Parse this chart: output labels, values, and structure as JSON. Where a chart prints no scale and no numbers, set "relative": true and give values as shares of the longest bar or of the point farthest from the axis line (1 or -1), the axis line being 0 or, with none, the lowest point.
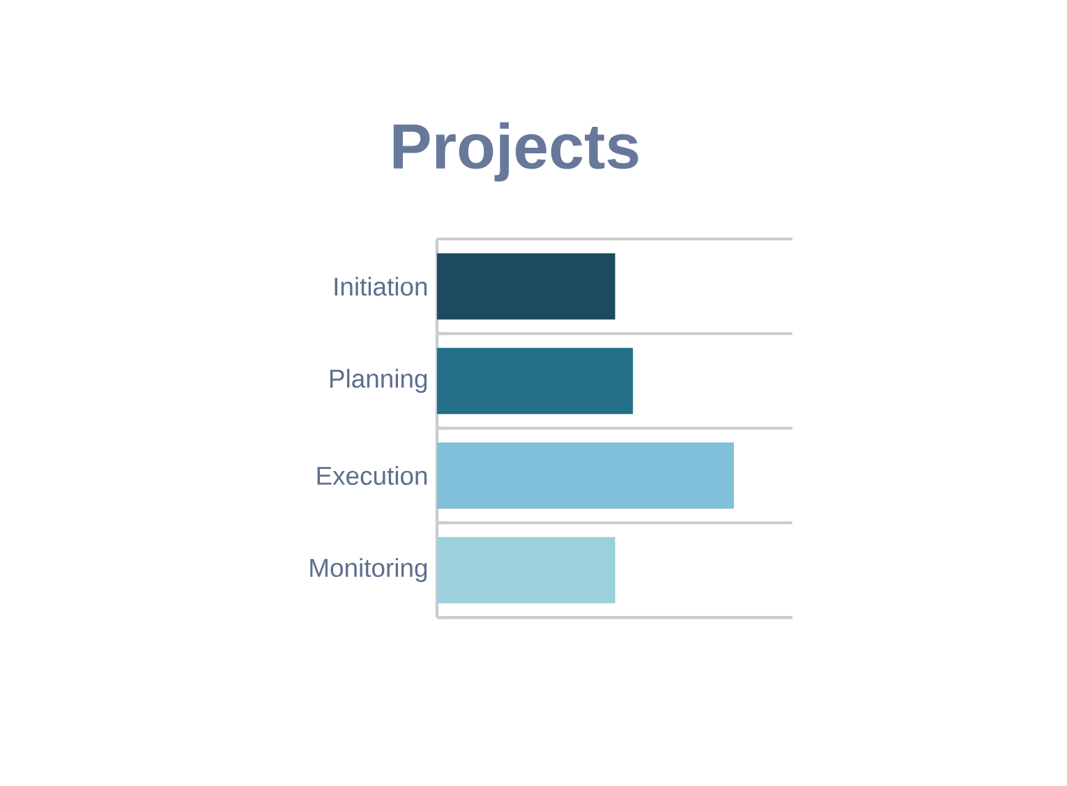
{
  "chart_data": {
    "type": "bar",
    "orientation": "horizontal",
    "relative": true,
    "title": "Projects",
    "categories": [
      "Initiation",
      "Planning",
      "Execution",
      "Monitoring"
    ],
    "values": [
      0.6,
      0.66,
      1,
      0.6
    ],
    "colors": [
      "#1c4a5e",
      "#257089",
      "#80c0da",
      "#9ad1da"
    ],
    "grid": "y"
  }
}
